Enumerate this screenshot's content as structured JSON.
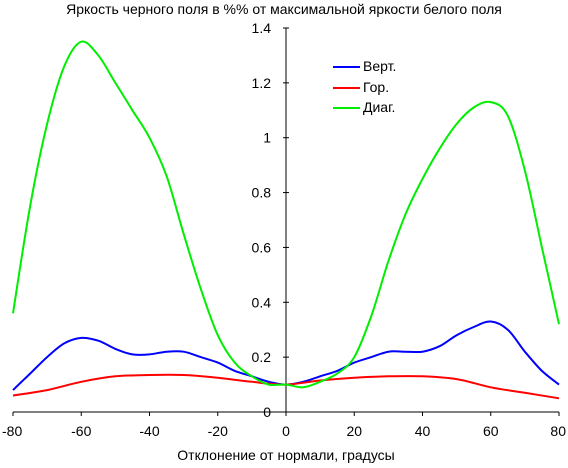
{
  "chart_data": {
    "type": "line",
    "title": "Яркость черного поля в %% от максимальной яркости белого поля",
    "xlabel": "Отклонение от нормали, градусы",
    "ylabel": "",
    "xlim": [
      -80,
      80
    ],
    "ylim": [
      0,
      1.4
    ],
    "x_ticks": [
      "-80",
      "-60",
      "-40",
      "-20",
      "0",
      "20",
      "40",
      "60",
      "80"
    ],
    "y_ticks": [
      "0",
      "0.2",
      "0.4",
      "0.6",
      "0.8",
      "1",
      "1.2",
      "1.4"
    ],
    "grid": false,
    "legend_position": "top-right",
    "series": [
      {
        "name": "Верт.",
        "color": "#0000ff",
        "x": [
          -80,
          -75,
          -70,
          -65,
          -60,
          -55,
          -50,
          -45,
          -40,
          -35,
          -30,
          -25,
          -20,
          -15,
          -10,
          -5,
          0,
          5,
          10,
          15,
          20,
          25,
          30,
          35,
          40,
          45,
          50,
          55,
          60,
          65,
          70,
          75,
          80
        ],
        "y": [
          0.08,
          0.14,
          0.2,
          0.25,
          0.27,
          0.26,
          0.23,
          0.21,
          0.21,
          0.22,
          0.22,
          0.2,
          0.18,
          0.15,
          0.13,
          0.11,
          0.1,
          0.11,
          0.13,
          0.15,
          0.18,
          0.2,
          0.22,
          0.22,
          0.22,
          0.24,
          0.28,
          0.31,
          0.33,
          0.3,
          0.22,
          0.15,
          0.1
        ]
      },
      {
        "name": "Гор.",
        "color": "#ff0000",
        "x": [
          -80,
          -70,
          -60,
          -50,
          -40,
          -30,
          -20,
          -10,
          0,
          10,
          20,
          30,
          40,
          50,
          60,
          70,
          80
        ],
        "y": [
          0.06,
          0.08,
          0.11,
          0.13,
          0.135,
          0.135,
          0.125,
          0.11,
          0.1,
          0.115,
          0.125,
          0.13,
          0.13,
          0.12,
          0.09,
          0.07,
          0.05
        ]
      },
      {
        "name": "Диаг.",
        "color": "#00ee00",
        "x": [
          -80,
          -75,
          -70,
          -65,
          -60,
          -55,
          -50,
          -45,
          -40,
          -35,
          -30,
          -25,
          -20,
          -15,
          -10,
          -5,
          0,
          5,
          10,
          15,
          20,
          25,
          30,
          35,
          40,
          45,
          50,
          55,
          60,
          65,
          70,
          75,
          80
        ],
        "y": [
          0.36,
          0.75,
          1.05,
          1.26,
          1.35,
          1.3,
          1.2,
          1.1,
          1.0,
          0.86,
          0.65,
          0.45,
          0.28,
          0.18,
          0.13,
          0.1,
          0.1,
          0.09,
          0.11,
          0.14,
          0.2,
          0.35,
          0.55,
          0.72,
          0.85,
          0.96,
          1.05,
          1.11,
          1.13,
          1.08,
          0.88,
          0.6,
          0.32
        ]
      }
    ]
  }
}
